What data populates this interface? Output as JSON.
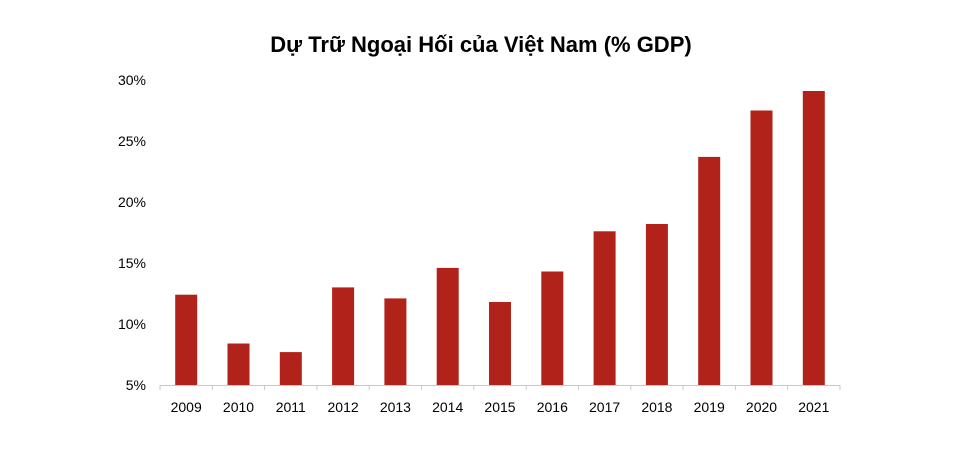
{
  "chart_data": {
    "type": "bar",
    "title": "Dự Trữ Ngoại Hối của Việt Nam (% GDP)",
    "xlabel": "",
    "ylabel": "",
    "categories": [
      "2009",
      "2010",
      "2011",
      "2012",
      "2013",
      "2014",
      "2015",
      "2016",
      "2017",
      "2018",
      "2019",
      "2020",
      "2021"
    ],
    "values": [
      12.4,
      8.4,
      7.7,
      13.0,
      12.1,
      14.6,
      11.8,
      14.3,
      17.6,
      18.2,
      23.7,
      27.5,
      29.1
    ],
    "ylim": [
      5,
      30
    ],
    "yticks": [
      5,
      10,
      15,
      20,
      25,
      30
    ],
    "ytick_labels": [
      "5%",
      "10%",
      "15%",
      "20%",
      "25%",
      "30%"
    ],
    "grid": false,
    "legend": "none",
    "bar_color": "#b0221a",
    "axis_color": "#c8c8c8"
  }
}
